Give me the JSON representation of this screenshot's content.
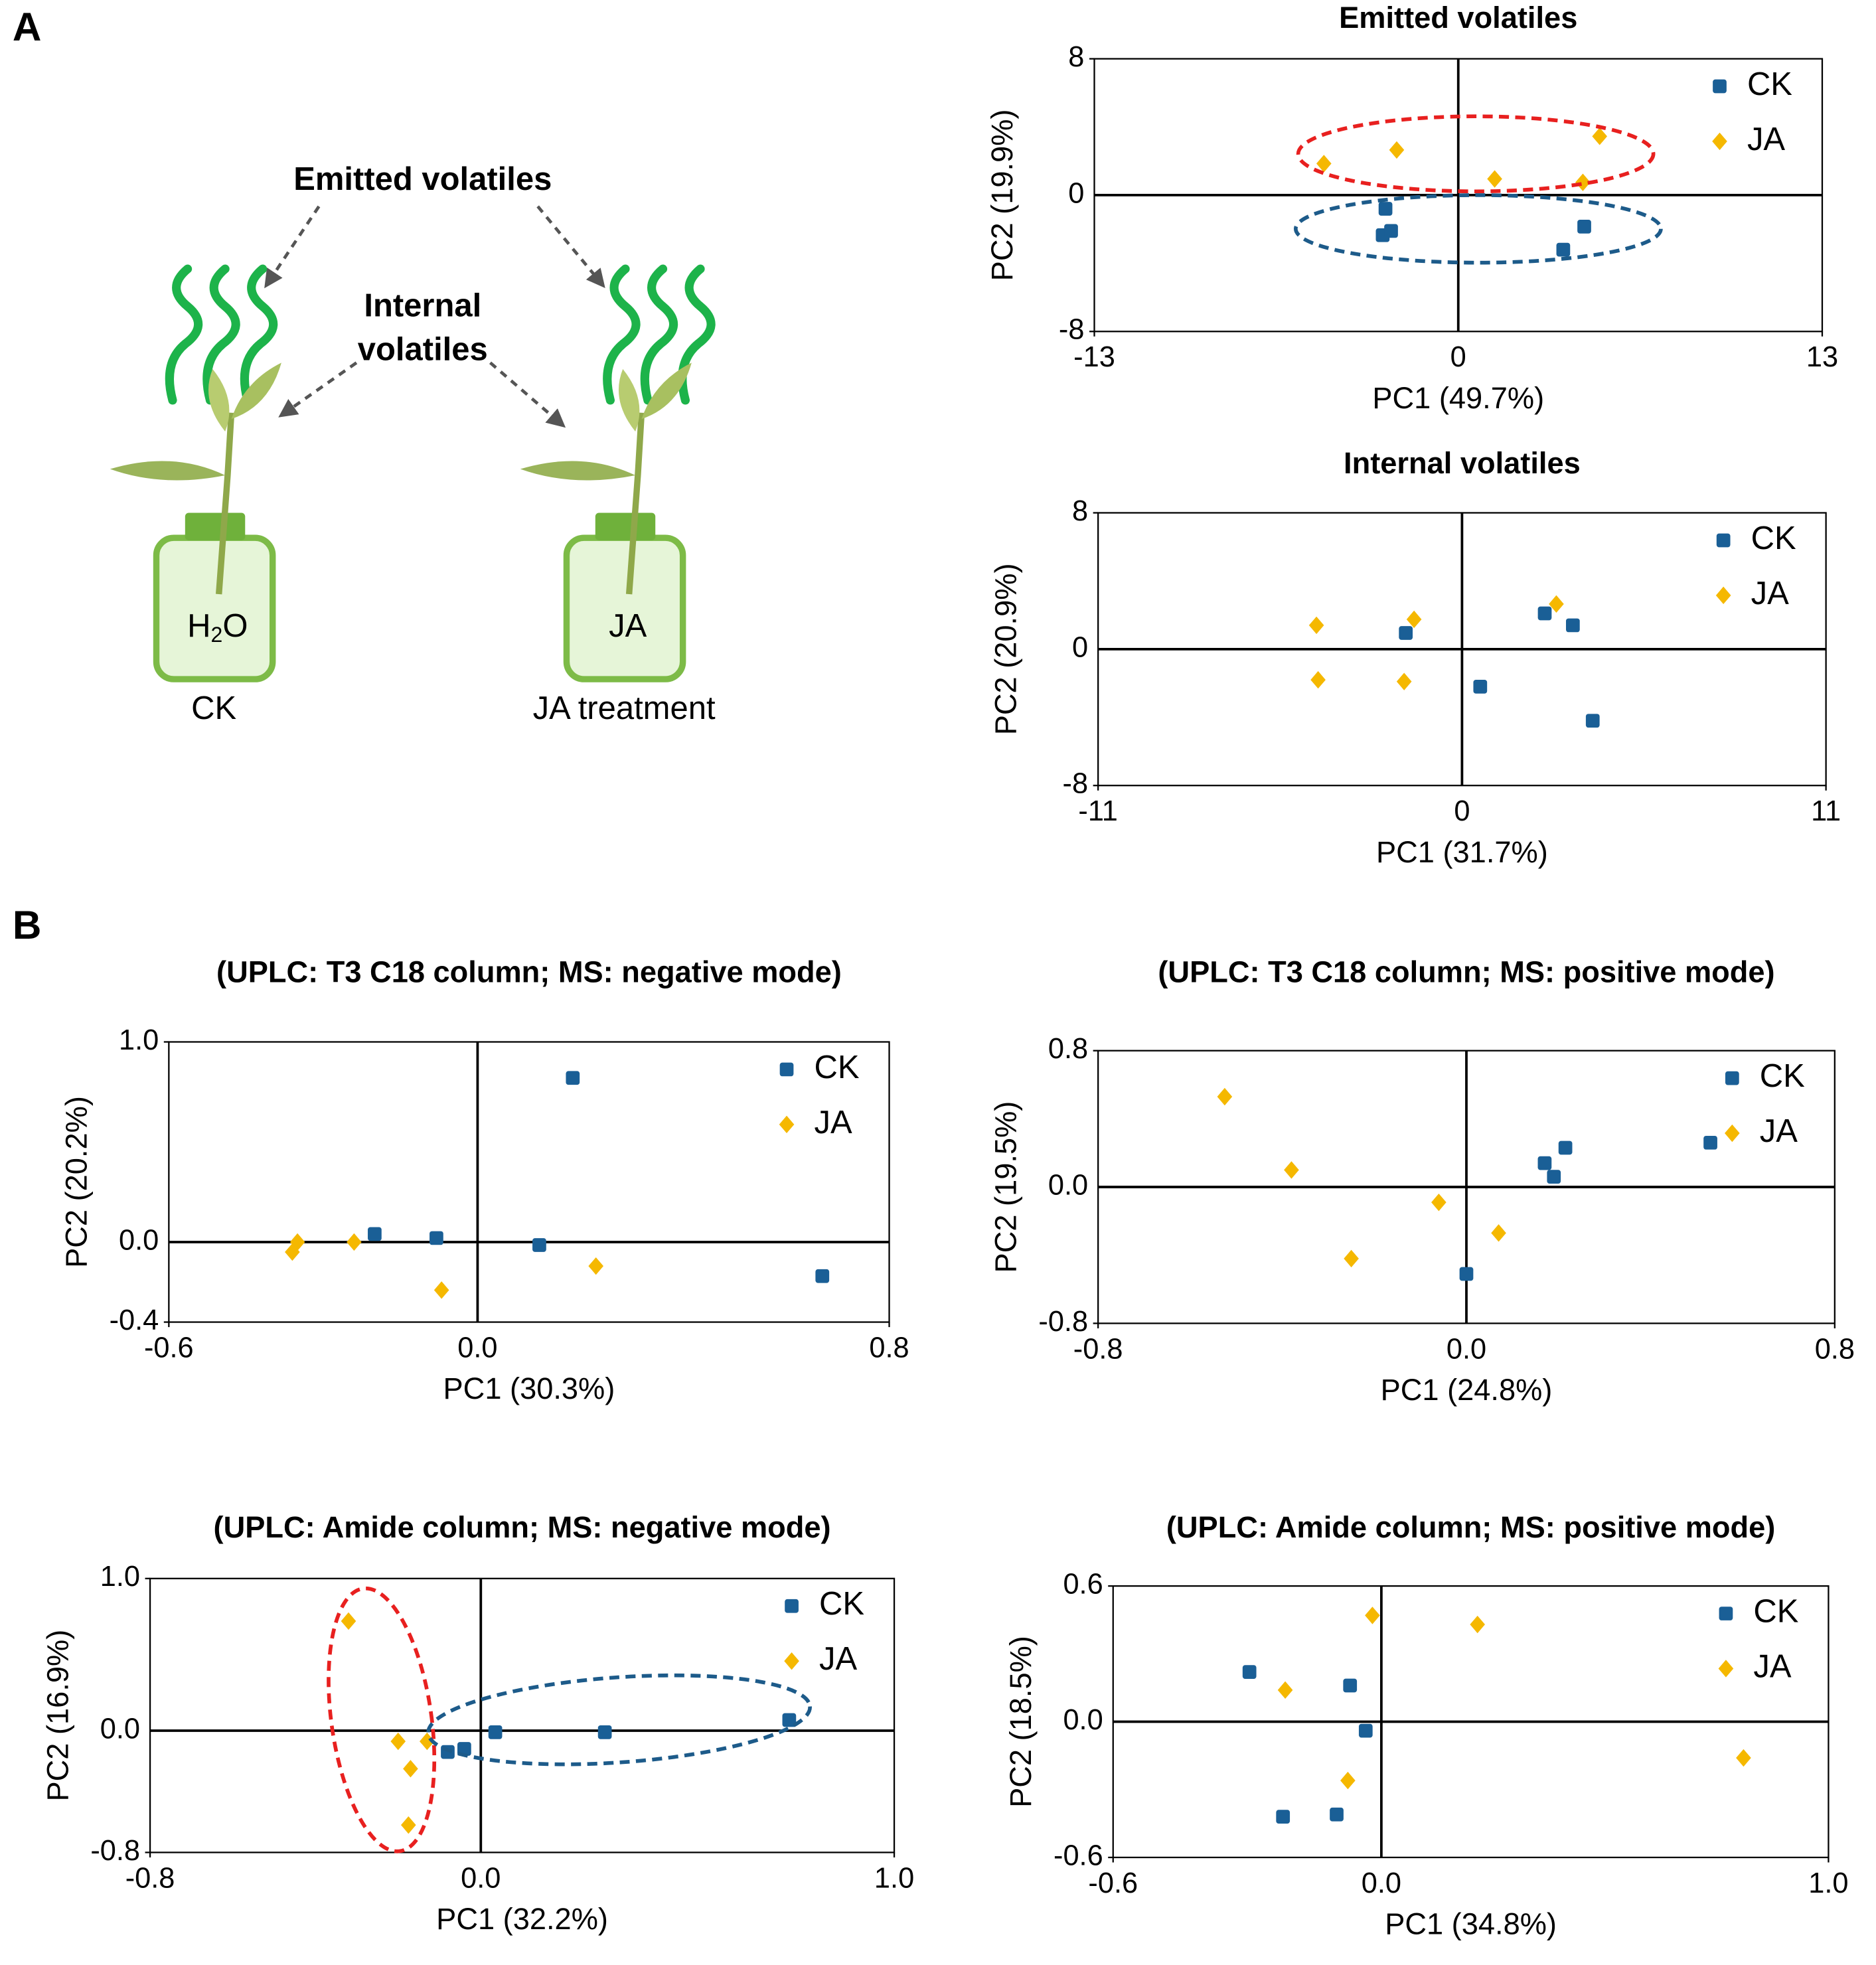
{
  "panel_labels": [
    "A",
    "B"
  ],
  "diagram": {
    "emitted_label": "Emitted volatiles",
    "internal_label": [
      "Internal",
      "volatiles"
    ],
    "jar_h2o": [
      "H",
      "2",
      "O"
    ],
    "jar_ja": "JA",
    "ck_caption": "CK",
    "ja_caption": "JA treatment"
  },
  "chart_data": [
    {
      "type": "scatter",
      "title": "Emitted volatiles",
      "x_label": "PC1 (49.7%)",
      "y_label": "PC2 (19.9%)",
      "xlim": [
        -13,
        13
      ],
      "xticks": [
        -13,
        0,
        13
      ],
      "ylim": [
        -8,
        8
      ],
      "yticks": [
        -8,
        0,
        8
      ],
      "zero_lines": true,
      "legend": "upper right",
      "series": [
        {
          "name": "CK",
          "color": "#1a5f96",
          "marker": "square",
          "x": [
            -2.6,
            -2.7,
            -2.4,
            3.75,
            4.5
          ],
          "values": [
            -0.8,
            -2.35,
            -2.1,
            -3.2,
            -1.85
          ]
        },
        {
          "name": "JA",
          "color": "#f5b800",
          "marker": "diamond",
          "x": [
            -4.8,
            -2.2,
            1.3,
            4.45,
            5.05
          ],
          "values": [
            1.85,
            2.65,
            0.95,
            0.75,
            3.45
          ]
        }
      ]
    },
    {
      "type": "scatter",
      "title": "Internal volatiles",
      "x_label": "PC1 (31.7%)",
      "y_label": "PC2 (20.9%)",
      "xlim": [
        -11,
        11
      ],
      "xticks": [
        -11,
        0,
        11
      ],
      "ylim": [
        -8,
        8
      ],
      "yticks": [
        -8,
        0,
        8
      ],
      "zero_lines": true,
      "legend": "upper right",
      "series": [
        {
          "name": "CK",
          "color": "#1a5f96",
          "marker": "square",
          "x": [
            -1.7,
            2.5,
            3.35,
            0.55,
            3.95
          ],
          "values": [
            0.95,
            2.1,
            1.4,
            -2.2,
            -4.2
          ]
        },
        {
          "name": "JA",
          "color": "#f5b800",
          "marker": "diamond",
          "x": [
            -4.4,
            -1.45,
            2.85,
            -4.35,
            -1.75
          ],
          "values": [
            1.4,
            1.75,
            2.65,
            -1.8,
            -1.9
          ]
        }
      ]
    },
    {
      "type": "scatter",
      "title": "(UPLC: T3 C18 column; MS: negative mode)",
      "x_label": "PC1 (30.3%)",
      "y_label": "PC2 (20.2%)",
      "xlim": [
        -0.6,
        0.8
      ],
      "xticks": [
        -0.6,
        {
          "value": 0,
          "label": "0.0"
        },
        0.8
      ],
      "ylim": [
        -0.4,
        1.0
      ],
      "yticks": [
        -0.4,
        {
          "value": 0,
          "label": "0.0"
        },
        {
          "value": 1,
          "label": "1.0"
        }
      ],
      "zero_lines": true,
      "legend": "upper right",
      "series": [
        {
          "name": "CK",
          "color": "#1a5f96",
          "marker": "square",
          "x": [
            0.185,
            -0.2,
            -0.08,
            0.12,
            0.67
          ],
          "values": [
            0.82,
            0.04,
            0.02,
            -0.015,
            -0.17
          ]
        },
        {
          "name": "JA",
          "color": "#f5b800",
          "marker": "diamond",
          "x": [
            -0.35,
            -0.36,
            -0.24,
            -0.07,
            0.23
          ],
          "values": [
            0.0,
            -0.05,
            0.0,
            -0.24,
            -0.12
          ]
        }
      ]
    },
    {
      "type": "scatter",
      "title": "(UPLC: T3 C18 column; MS: positive mode)",
      "x_label": "PC1 (24.8%)",
      "y_label": "PC2 (19.5%)",
      "xlim": [
        -0.8,
        0.8
      ],
      "xticks": [
        -0.8,
        {
          "value": 0,
          "label": "0.0"
        },
        0.8
      ],
      "ylim": [
        -0.8,
        0.8
      ],
      "yticks": [
        -0.8,
        {
          "value": 0,
          "label": "0.0"
        },
        0.8
      ],
      "zero_lines": true,
      "legend": "upper right",
      "series": [
        {
          "name": "CK",
          "color": "#1a5f96",
          "marker": "square",
          "x": [
            0.17,
            0.215,
            0.19,
            0.53,
            0.0
          ],
          "values": [
            0.14,
            0.23,
            0.06,
            0.26,
            -0.51
          ]
        },
        {
          "name": "JA",
          "color": "#f5b800",
          "marker": "diamond",
          "x": [
            -0.525,
            -0.38,
            -0.06,
            0.07,
            -0.25
          ],
          "values": [
            0.53,
            0.1,
            -0.09,
            -0.27,
            -0.42
          ]
        }
      ]
    },
    {
      "type": "scatter",
      "title": "(UPLC: Amide column; MS: negative mode)",
      "x_label": "PC1 (32.2%)",
      "y_label": "PC2 (16.9%)",
      "xlim": [
        -0.8,
        1.0
      ],
      "xticks": [
        -0.8,
        {
          "value": 0,
          "label": "0.0"
        },
        {
          "value": 1,
          "label": "1.0"
        }
      ],
      "ylim": [
        -0.8,
        1.0
      ],
      "yticks": [
        -0.8,
        {
          "value": 0,
          "label": "0.0"
        },
        {
          "value": 1,
          "label": "1.0"
        }
      ],
      "zero_lines": true,
      "legend": "upper right",
      "series": [
        {
          "name": "CK",
          "color": "#1a5f96",
          "marker": "square",
          "x": [
            0.746,
            0.3,
            0.035,
            -0.04,
            -0.08
          ],
          "values": [
            0.07,
            -0.01,
            -0.01,
            -0.12,
            -0.14
          ]
        },
        {
          "name": "JA",
          "color": "#f5b800",
          "marker": "diamond",
          "x": [
            -0.32,
            -0.2,
            -0.13,
            -0.17,
            -0.175
          ],
          "values": [
            0.72,
            -0.07,
            -0.07,
            -0.25,
            -0.62
          ]
        }
      ]
    },
    {
      "type": "scatter",
      "title": "(UPLC: Amide column; MS: positive mode)",
      "x_label": "PC1 (34.8%)",
      "y_label": "PC2 (18.5%)",
      "xlim": [
        -0.6,
        1.0
      ],
      "xticks": [
        -0.6,
        {
          "value": 0,
          "label": "0.0"
        },
        {
          "value": 1,
          "label": "1.0"
        }
      ],
      "ylim": [
        -0.6,
        0.6
      ],
      "yticks": [
        -0.6,
        {
          "value": 0,
          "label": "0.0"
        },
        0.6
      ],
      "zero_lines": true,
      "legend": "upper right",
      "series": [
        {
          "name": "CK",
          "color": "#1a5f96",
          "marker": "square",
          "x": [
            -0.295,
            -0.07,
            -0.035,
            -0.1,
            -0.22
          ],
          "values": [
            0.22,
            0.16,
            -0.04,
            -0.41,
            -0.42
          ]
        },
        {
          "name": "JA",
          "color": "#f5b800",
          "marker": "diamond",
          "x": [
            -0.02,
            0.215,
            -0.215,
            -0.075,
            0.81
          ],
          "values": [
            0.47,
            0.43,
            0.14,
            -0.26,
            -0.16
          ]
        }
      ]
    }
  ]
}
